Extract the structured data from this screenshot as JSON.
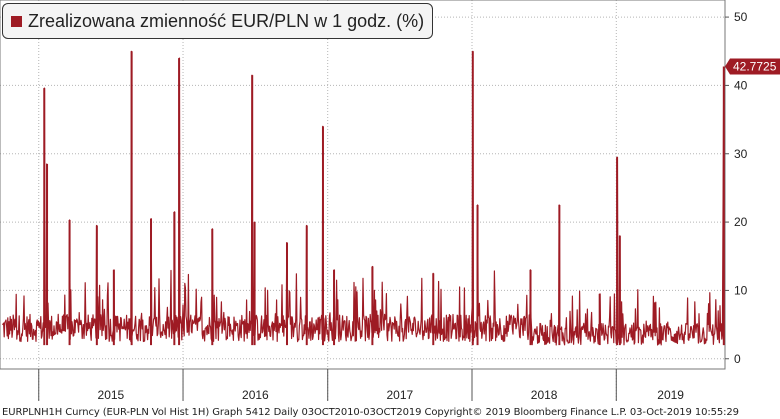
{
  "chart_data": {
    "type": "line",
    "title": "Zrealizowana zmienność EUR/PLN w 1 godz. (%)",
    "series": [
      {
        "name": "Zrealizowana zmienność EUR/PLN w 1 godz. (%)",
        "color": "#9e1b24",
        "last_value": 42.7725,
        "last_value_label": "42.7725",
        "spikes": [
          {
            "date": "2015-01-15",
            "value": 39.6
          },
          {
            "date": "2015-01-22",
            "value": 28.5
          },
          {
            "date": "2015-03-20",
            "value": 20.3
          },
          {
            "date": "2015-05-28",
            "value": 19.5
          },
          {
            "date": "2015-07-10",
            "value": 13.0
          },
          {
            "date": "2015-08-24",
            "value": 45.0
          },
          {
            "date": "2015-10-12",
            "value": 20.5
          },
          {
            "date": "2015-12-10",
            "value": 21.5
          },
          {
            "date": "2015-12-22",
            "value": 44.0
          },
          {
            "date": "2016-03-15",
            "value": 19.0
          },
          {
            "date": "2016-06-24",
            "value": 41.5
          },
          {
            "date": "2016-06-30",
            "value": 20.0
          },
          {
            "date": "2016-09-20",
            "value": 17.0
          },
          {
            "date": "2016-11-09",
            "value": 19.5
          },
          {
            "date": "2016-12-20",
            "value": 34.0
          },
          {
            "date": "2017-01-17",
            "value": 13.0
          },
          {
            "date": "2017-04-24",
            "value": 13.5
          },
          {
            "date": "2017-09-25",
            "value": 12.5
          },
          {
            "date": "2018-01-03",
            "value": 45.0
          },
          {
            "date": "2018-01-15",
            "value": 22.5
          },
          {
            "date": "2018-05-29",
            "value": 13.0
          },
          {
            "date": "2018-08-10",
            "value": 22.5
          },
          {
            "date": "2018-11-20",
            "value": 9.5
          },
          {
            "date": "2019-01-03",
            "value": 29.5
          },
          {
            "date": "2019-01-10",
            "value": 18.0
          },
          {
            "date": "2019-09-30",
            "value": 42.7725
          }
        ]
      }
    ],
    "x_range": [
      "2014-09-25",
      "2019-10-03"
    ],
    "x_ticks": [
      {
        "label": "2015",
        "start": "2015-01-01",
        "end": "2016-01-01"
      },
      {
        "label": "2016",
        "start": "2016-01-01",
        "end": "2017-01-01"
      },
      {
        "label": "2017",
        "start": "2017-01-01",
        "end": "2018-01-01"
      },
      {
        "label": "2018",
        "start": "2018-01-01",
        "end": "2019-01-01"
      },
      {
        "label": "2019",
        "start": "2019-01-01",
        "end": "2019-10-03"
      }
    ],
    "ylim": [
      -1.5,
      52.5
    ],
    "y_ticks": [
      0,
      10,
      20,
      30,
      40,
      50
    ],
    "y_axis_side": "right",
    "grid": true,
    "legend_position": "top-left"
  },
  "footer": "EURPLNH1H Curncy (EUR-PLN Vol Hist 1H) Graph 5412  Daily 03OCT2010-03OCT2019  Copyright© 2019 Bloomberg Finance L.P.  03-Oct-2019 10:55:29"
}
